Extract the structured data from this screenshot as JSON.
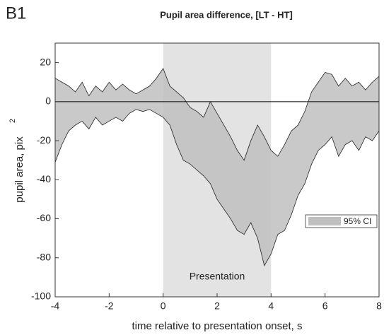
{
  "panel_label": "B1",
  "chart_data": {
    "type": "band",
    "title": "Pupil area difference, [LT - HT]",
    "xlabel": "time relative to presentation onset, s",
    "ylabel": "pupil area, pix",
    "ylabel_sup": "2",
    "x": [
      -4,
      -3.75,
      -3.5,
      -3.25,
      -3,
      -2.75,
      -2.5,
      -2.25,
      -2,
      -1.75,
      -1.5,
      -1.25,
      -1,
      -0.75,
      -0.5,
      -0.25,
      0,
      0.25,
      0.5,
      0.75,
      1,
      1.25,
      1.5,
      1.75,
      2,
      2.25,
      2.5,
      2.75,
      3,
      3.25,
      3.5,
      3.75,
      4,
      4.25,
      4.5,
      4.75,
      5,
      5.25,
      5.5,
      5.75,
      6,
      6.25,
      6.5,
      6.75,
      7,
      7.25,
      7.5,
      7.75,
      8
    ],
    "upper": [
      12,
      10,
      8,
      5,
      10,
      3,
      8,
      5,
      10,
      6,
      9,
      6,
      4,
      6,
      8,
      12,
      17,
      8,
      5,
      2,
      -3,
      -5,
      -8,
      0,
      -6,
      -12,
      -18,
      -25,
      -30,
      -20,
      -12,
      -18,
      -25,
      -28,
      -22,
      -15,
      -12,
      -5,
      5,
      10,
      15,
      14,
      8,
      12,
      8,
      10,
      6,
      10,
      13
    ],
    "lower": [
      -31,
      -22,
      -15,
      -12,
      -10,
      -14,
      -8,
      -12,
      -10,
      -8,
      -10,
      -6,
      -4,
      -5,
      -4,
      -6,
      -8,
      -12,
      -22,
      -30,
      -32,
      -35,
      -38,
      -42,
      -50,
      -55,
      -60,
      -66,
      -68,
      -62,
      -70,
      -84,
      -78,
      -68,
      -66,
      -58,
      -48,
      -42,
      -32,
      -25,
      -22,
      -18,
      -28,
      -22,
      -20,
      -25,
      -18,
      -20,
      -15
    ],
    "band_name": "95% CI",
    "color": "#bfbfbf",
    "line_color": "#222222",
    "shade": {
      "xlim": [
        0,
        4
      ],
      "label": "Presentation",
      "color": "#e3e3e3"
    },
    "hline": 0,
    "legend": "right",
    "xlim": [
      -4,
      8
    ],
    "xticks": [
      -4,
      -2,
      0,
      2,
      4,
      6,
      8
    ],
    "ylim": [
      -100,
      30
    ],
    "yticks": [
      -100,
      -80,
      -60,
      -40,
      -20,
      0,
      20
    ]
  }
}
